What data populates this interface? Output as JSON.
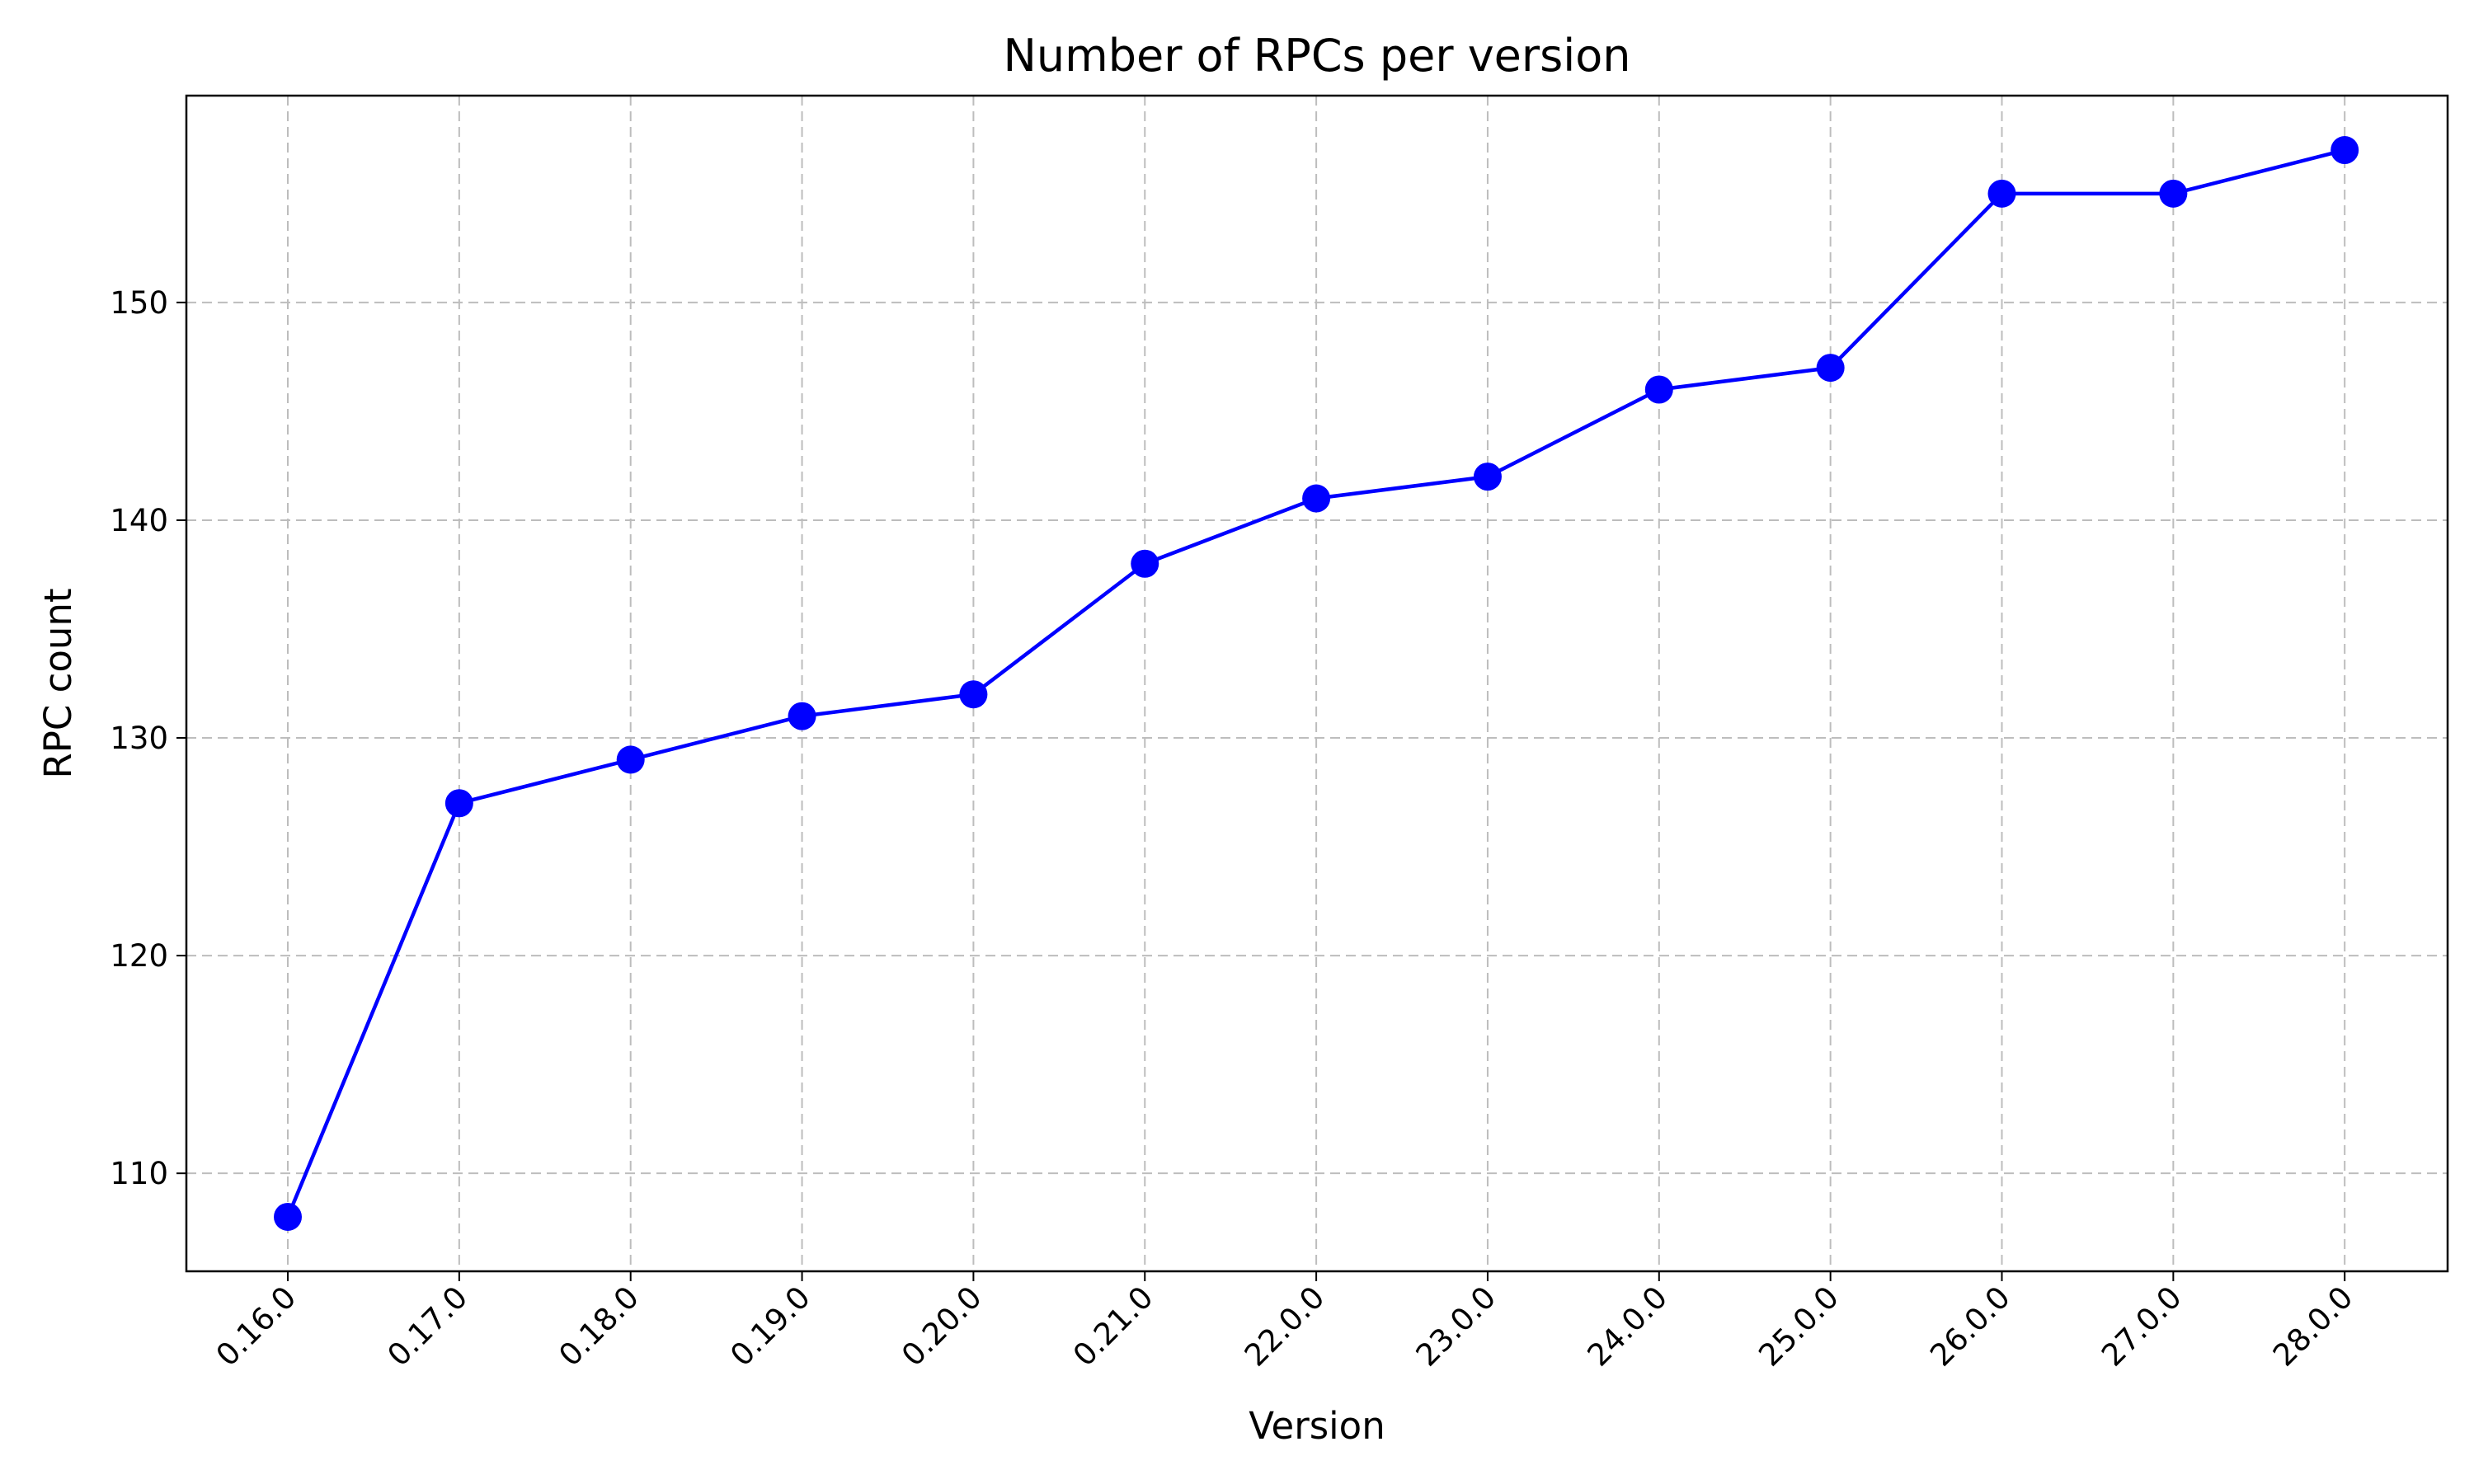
{
  "chart_data": {
    "type": "line",
    "title": "Number of RPCs per version",
    "xlabel": "Version",
    "ylabel": "RPC count",
    "categories": [
      "0.16.0",
      "0.17.0",
      "0.18.0",
      "0.19.0",
      "0.20.0",
      "0.21.0",
      "22.0.0",
      "23.0.0",
      "24.0.0",
      "25.0.0",
      "26.0.0",
      "27.0.0",
      "28.0.0"
    ],
    "series": [
      {
        "values": [
          108,
          127,
          129,
          131,
          132,
          138,
          141,
          142,
          146,
          147,
          155,
          155,
          157
        ],
        "color": "#0000ff",
        "marker": "circle"
      }
    ],
    "ylim": [
      105.5,
      159.5
    ],
    "yticks": [
      110,
      120,
      130,
      140,
      150
    ],
    "grid": true,
    "x_tick_rotation": 45
  }
}
